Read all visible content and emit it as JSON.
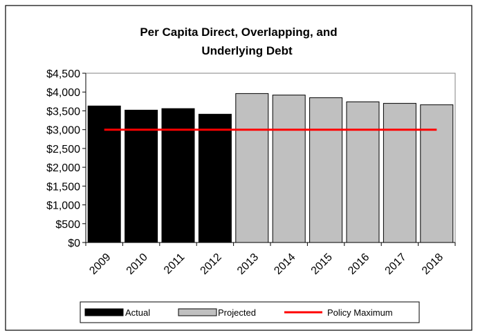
{
  "chart_data": {
    "type": "bar",
    "title_lines": [
      "Per Capita Direct, Overlapping, and",
      "Underlying Debt"
    ],
    "xlabel": "",
    "ylabel": "",
    "categories": [
      "2009",
      "2010",
      "2011",
      "2012",
      "2013",
      "2014",
      "2015",
      "2016",
      "2017",
      "2018"
    ],
    "series": [
      {
        "name": "Actual",
        "type": "bar",
        "color": "#000000",
        "values": [
          3630,
          3520,
          3560,
          3410,
          null,
          null,
          null,
          null,
          null,
          null
        ]
      },
      {
        "name": "Projected",
        "type": "bar",
        "color": "#c0c0c0",
        "values": [
          null,
          null,
          null,
          null,
          3960,
          3920,
          3850,
          3740,
          3700,
          3660
        ]
      },
      {
        "name": "Policy Maximum",
        "type": "line",
        "color": "#ff0000",
        "values": [
          3000,
          3000,
          3000,
          3000,
          3000,
          3000,
          3000,
          3000,
          3000,
          3000
        ]
      }
    ],
    "ylim": [
      0,
      4500
    ],
    "yticks": [
      0,
      500,
      1000,
      1500,
      2000,
      2500,
      3000,
      3500,
      4000,
      4500
    ],
    "ytick_labels": [
      "$0",
      "$500",
      "$1,000",
      "$1,500",
      "$2,000",
      "$2,500",
      "$3,000",
      "$3,500",
      "$4,000",
      "$4,500"
    ],
    "grid": false,
    "legend_position": "bottom"
  }
}
